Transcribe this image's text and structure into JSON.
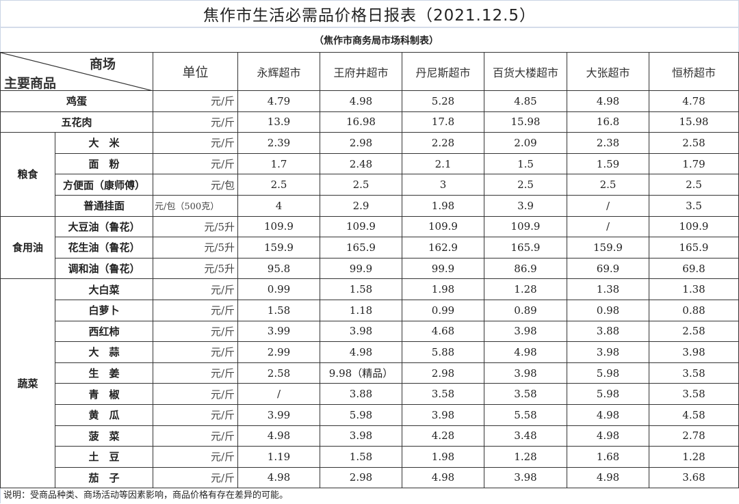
{
  "title": "焦作市生活必需品价格日报表（2021.12.5）",
  "subtitle": "（焦作市商务局市场科制表）",
  "header": {
    "store_label": "商场",
    "item_label": "主要商品",
    "unit_label": "单位",
    "stores": [
      "永辉超市",
      "王府井超市",
      "丹尼斯超市",
      "百货大楼超市",
      "大张超市",
      "恒桥超市"
    ]
  },
  "rows": [
    {
      "category": "",
      "item": "鸡蛋",
      "unit": "元/斤",
      "prices": [
        "4.79",
        "4.98",
        "5.28",
        "4.85",
        "4.98",
        "4.78"
      ]
    },
    {
      "category": "",
      "item": "五花肉",
      "unit": "元/斤",
      "prices": [
        "13.9",
        "16.98",
        "17.8",
        "15.98",
        "16.8",
        "15.98"
      ]
    },
    {
      "category": "粮食",
      "item": "大　米",
      "unit": "元/斤",
      "prices": [
        "2.39",
        "2.98",
        "2.28",
        "2.09",
        "2.38",
        "2.58"
      ]
    },
    {
      "category": "粮食",
      "item": "面　粉",
      "unit": "元/斤",
      "prices": [
        "1.7",
        "2.48",
        "2.1",
        "1.5",
        "1.59",
        "1.79"
      ]
    },
    {
      "category": "粮食",
      "item": "方便面（康师傅）",
      "unit": "元/包",
      "prices": [
        "2.5",
        "2.5",
        "3",
        "2.5",
        "2.5",
        "2.5"
      ]
    },
    {
      "category": "粮食",
      "item": "普通挂面",
      "unit": "元/包（500克）",
      "prices": [
        "4",
        "2.9",
        "1.98",
        "3.9",
        "/",
        "3.5"
      ]
    },
    {
      "category": "食用油",
      "item": "大豆油（鲁花）",
      "unit": "元/5升",
      "prices": [
        "109.9",
        "109.9",
        "109.9",
        "109.9",
        "/",
        "109.9"
      ]
    },
    {
      "category": "食用油",
      "item": "花生油（鲁花）",
      "unit": "元/5升",
      "prices": [
        "159.9",
        "165.9",
        "162.9",
        "165.9",
        "159.9",
        "165.9"
      ]
    },
    {
      "category": "食用油",
      "item": "调和油（鲁花）",
      "unit": "元/5升",
      "prices": [
        "95.8",
        "99.9",
        "99.9",
        "86.9",
        "69.9",
        "69.8"
      ]
    },
    {
      "category": "蔬菜",
      "item": "大白菜",
      "unit": "元/斤",
      "prices": [
        "0.99",
        "1.58",
        "1.98",
        "1.28",
        "1.38",
        "1.38"
      ]
    },
    {
      "category": "蔬菜",
      "item": "白萝卜",
      "unit": "元/斤",
      "prices": [
        "1.58",
        "1.18",
        "0.99",
        "0.89",
        "0.98",
        "0.88"
      ]
    },
    {
      "category": "蔬菜",
      "item": "西红柿",
      "unit": "元/斤",
      "prices": [
        "3.99",
        "3.98",
        "4.68",
        "3.98",
        "3.88",
        "2.58"
      ]
    },
    {
      "category": "蔬菜",
      "item": "大　蒜",
      "unit": "元/斤",
      "prices": [
        "2.99",
        "4.98",
        "5.88",
        "4.98",
        "3.98",
        "3.98"
      ]
    },
    {
      "category": "蔬菜",
      "item": "生　姜",
      "unit": "元/斤",
      "prices": [
        "2.58",
        "9.98（精品）",
        "2.98",
        "3.98",
        "5.98",
        "3.58"
      ]
    },
    {
      "category": "蔬菜",
      "item": "青　椒",
      "unit": "元/斤",
      "prices": [
        "/",
        "3.88",
        "3.58",
        "3.58",
        "5.98",
        "3.58"
      ]
    },
    {
      "category": "蔬菜",
      "item": "黄　瓜",
      "unit": "元/斤",
      "prices": [
        "3.99",
        "5.98",
        "3.98",
        "5.58",
        "4.98",
        "4.58"
      ]
    },
    {
      "category": "蔬菜",
      "item": "菠　菜",
      "unit": "元/斤",
      "prices": [
        "4.98",
        "3.98",
        "4.28",
        "3.48",
        "4.98",
        "2.78"
      ]
    },
    {
      "category": "蔬菜",
      "item": "土　豆",
      "unit": "元/斤",
      "prices": [
        "1.19",
        "1.58",
        "1.98",
        "1.28",
        "1.68",
        "1.28"
      ]
    },
    {
      "category": "蔬菜",
      "item": "茄　子",
      "unit": "元/斤",
      "prices": [
        "4.98",
        "2.98",
        "4.98",
        "3.98",
        "4.98",
        "3.68"
      ]
    }
  ],
  "note": "说明：受商品种类、商场活动等因素影响，商品价格有存在差异的可能。"
}
